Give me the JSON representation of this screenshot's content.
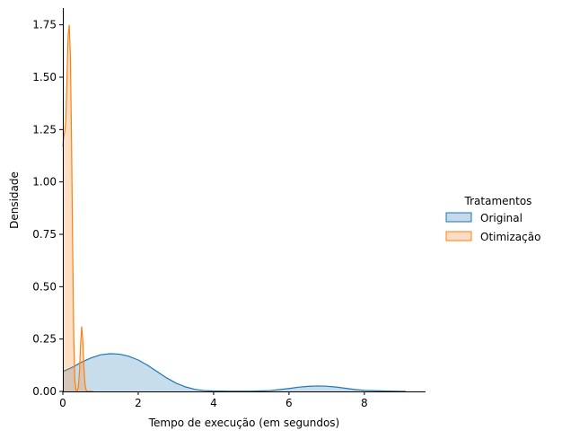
{
  "chart_data": {
    "type": "area",
    "title": "",
    "xlabel": "Tempo de execução (em segundos)",
    "ylabel": "Densidade",
    "xlim": [
      0,
      9.6
    ],
    "ylim": [
      0,
      1.83
    ],
    "xticks": [
      0,
      2,
      4,
      6,
      8
    ],
    "yticks": [
      0.0,
      0.25,
      0.5,
      0.75,
      1.0,
      1.25,
      1.5,
      1.75
    ],
    "xtick_labels": [
      "0",
      "2",
      "4",
      "6",
      "8"
    ],
    "ytick_labels": [
      "0.00",
      "0.25",
      "0.50",
      "0.75",
      "1.00",
      "1.25",
      "1.50",
      "1.75"
    ],
    "grid": false,
    "legend": {
      "title": "Tratamentos",
      "placement": "right"
    },
    "series": [
      {
        "name": "Original",
        "color": "#1f77b4",
        "fill": "#c6d9ea",
        "x": [
          0,
          0.25,
          0.5,
          0.75,
          1.0,
          1.25,
          1.5,
          1.75,
          2.0,
          2.25,
          2.5,
          2.75,
          3.0,
          3.25,
          3.5,
          3.75,
          4.0,
          4.5,
          5.0,
          5.5,
          6.0,
          6.25,
          6.5,
          6.75,
          7.0,
          7.25,
          7.5,
          7.75,
          8.0,
          8.5,
          9.1
        ],
        "y": [
          0.095,
          0.115,
          0.14,
          0.16,
          0.175,
          0.18,
          0.178,
          0.168,
          0.15,
          0.125,
          0.095,
          0.065,
          0.04,
          0.022,
          0.01,
          0.004,
          0.002,
          0.001,
          0.001,
          0.004,
          0.014,
          0.02,
          0.024,
          0.026,
          0.025,
          0.021,
          0.015,
          0.009,
          0.005,
          0.002,
          0.0
        ]
      },
      {
        "name": "Otimização",
        "color": "#ff7f0e",
        "fill": "#fbdcc4",
        "x": [
          0,
          0.02,
          0.05,
          0.08,
          0.11,
          0.14,
          0.17,
          0.2,
          0.23,
          0.26,
          0.29,
          0.32,
          0.35,
          0.38,
          0.41,
          0.44,
          0.47,
          0.5,
          0.53,
          0.56,
          0.59,
          0.62,
          0.65,
          0.7,
          0.8
        ],
        "y": [
          1.17,
          1.21,
          1.24,
          1.3,
          1.5,
          1.7,
          1.75,
          1.6,
          1.2,
          0.7,
          0.25,
          0.05,
          0.005,
          0.002,
          0.02,
          0.09,
          0.22,
          0.31,
          0.24,
          0.11,
          0.03,
          0.005,
          0.0,
          0.0,
          0.0
        ]
      }
    ]
  }
}
